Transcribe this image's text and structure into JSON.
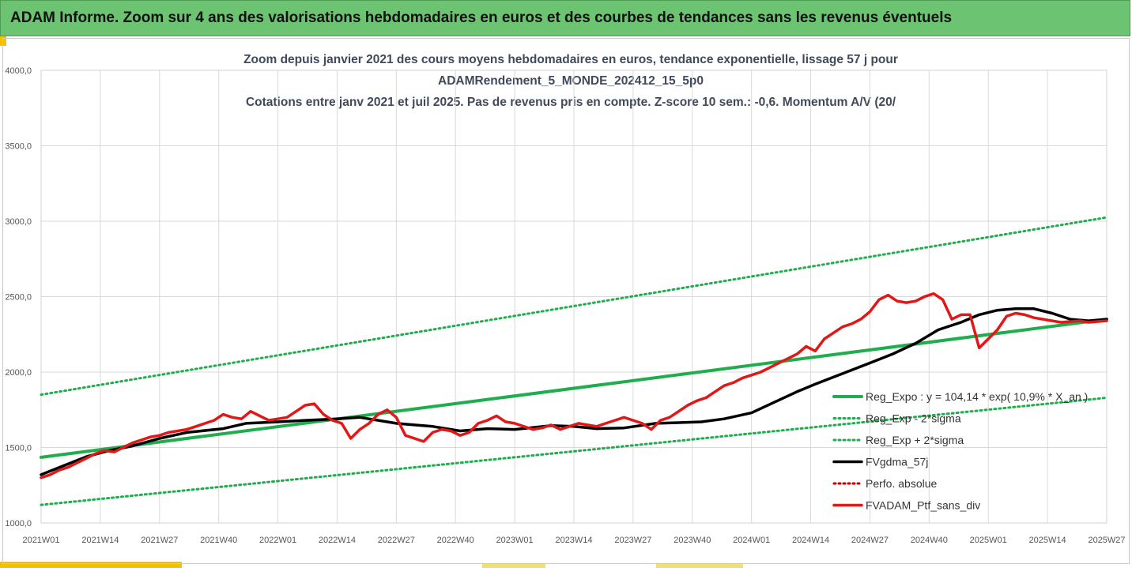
{
  "header": {
    "title": "ADAM Informe. Zoom sur 4 ans des valorisations hebdomadaires en euros et des courbes de tendances sans les revenus éventuels"
  },
  "colors": {
    "header_bg": "#6cc371",
    "reg_expo": "#1fad4e",
    "sigma_bands": "#1fad4e",
    "fvgdma": "#000000",
    "perfo_absolue": "#c00000",
    "fvadam": "#e01818",
    "accent": "#f2c100"
  },
  "chart_data": {
    "type": "line",
    "title_lines": [
      "Zoom depuis janvier 2021 des cours moyens hebdomadaires  en euros, tendance exponentielle, lissage 57 j pour",
      "ADAMRendement_5_MONDE_202412_15_5p0",
      "Cotations entre janv 2021 et juil 2025. Pas de revenus pris en compte. Z-score 10 sem.: -0,6. Momentum A/V (20/"
    ],
    "x_tick_labels": [
      "2021W01",
      "2021W14",
      "2021W27",
      "2021W40",
      "2022W01",
      "2022W14",
      "2022W27",
      "2022W40",
      "2023W01",
      "2023W14",
      "2023W27",
      "2023W40",
      "2024W01",
      "2024W14",
      "2024W27",
      "2024W40",
      "2025W01",
      "2025W14",
      "2025W27"
    ],
    "y_tick_labels": [
      "1000,0",
      "1500,0",
      "2000,0",
      "2500,0",
      "3000,0",
      "3500,0",
      "4000,0"
    ],
    "ylim": [
      1000,
      4000
    ],
    "x_range_weeks": [
      0,
      234
    ],
    "grid": true,
    "legend_position": "bottom-right",
    "series": [
      {
        "name": "Reg_Expo : y = 104,14 * exp( 10,9% *  X_an )",
        "style": "solid",
        "x_weeks": [
          0,
          234
        ],
        "y": [
          1435,
          2350
        ]
      },
      {
        "name": "Reg_Exp - 2*sigma",
        "style": "dotted",
        "x_weeks": [
          0,
          234
        ],
        "y": [
          1120,
          1830
        ]
      },
      {
        "name": "Reg_Exp + 2*sigma",
        "style": "dotted",
        "x_weeks": [
          0,
          234
        ],
        "y": [
          1850,
          3025
        ]
      },
      {
        "name": "FVgdma_57j",
        "style": "solid",
        "x_weeks": [
          0,
          5,
          10,
          15,
          20,
          26,
          32,
          40,
          45,
          52,
          58,
          65,
          70,
          78,
          82,
          86,
          92,
          98,
          104,
          112,
          117,
          122,
          128,
          135,
          140,
          145,
          150,
          156,
          161,
          166,
          170,
          176,
          182,
          187,
          192,
          197,
          202,
          206,
          210,
          214,
          218,
          222,
          226,
          230,
          234
        ],
        "y": [
          1320,
          1380,
          1440,
          1480,
          1510,
          1560,
          1600,
          1625,
          1660,
          1670,
          1680,
          1690,
          1700,
          1660,
          1650,
          1640,
          1610,
          1625,
          1620,
          1645,
          1640,
          1625,
          1630,
          1660,
          1665,
          1670,
          1690,
          1730,
          1800,
          1870,
          1920,
          1990,
          2060,
          2120,
          2190,
          2280,
          2330,
          2380,
          2410,
          2420,
          2420,
          2390,
          2350,
          2340,
          2350
        ]
      },
      {
        "name": "Perfo. absolue",
        "style": "dotted",
        "x_weeks": [],
        "y": []
      },
      {
        "name": "FVADAM_Ptf_sans_div",
        "style": "solid",
        "x_weeks": [
          0,
          2,
          4,
          6,
          8,
          10,
          12,
          14,
          16,
          18,
          20,
          22,
          24,
          26,
          28,
          30,
          32,
          34,
          36,
          38,
          40,
          42,
          44,
          46,
          48,
          50,
          52,
          54,
          56,
          58,
          60,
          62,
          64,
          66,
          68,
          70,
          72,
          74,
          76,
          78,
          80,
          82,
          84,
          86,
          88,
          90,
          92,
          94,
          96,
          98,
          100,
          102,
          104,
          106,
          108,
          110,
          112,
          114,
          116,
          118,
          120,
          122,
          124,
          126,
          128,
          130,
          132,
          134,
          136,
          138,
          140,
          142,
          144,
          146,
          148,
          150,
          152,
          154,
          156,
          158,
          160,
          162,
          164,
          166,
          168,
          170,
          172,
          174,
          176,
          178,
          180,
          182,
          184,
          186,
          188,
          190,
          192,
          194,
          196,
          198,
          200,
          202,
          204,
          206,
          208,
          210,
          212,
          214,
          216,
          218,
          220,
          222,
          224,
          226,
          228,
          230,
          232,
          234
        ],
        "y": [
          1300,
          1320,
          1350,
          1370,
          1400,
          1430,
          1460,
          1480,
          1470,
          1500,
          1530,
          1550,
          1570,
          1580,
          1600,
          1610,
          1620,
          1640,
          1660,
          1680,
          1720,
          1700,
          1690,
          1740,
          1710,
          1680,
          1690,
          1700,
          1740,
          1780,
          1790,
          1720,
          1680,
          1660,
          1560,
          1620,
          1660,
          1720,
          1750,
          1700,
          1580,
          1560,
          1540,
          1600,
          1620,
          1610,
          1580,
          1600,
          1660,
          1680,
          1710,
          1670,
          1660,
          1640,
          1620,
          1630,
          1650,
          1620,
          1640,
          1660,
          1650,
          1640,
          1660,
          1680,
          1700,
          1680,
          1660,
          1620,
          1680,
          1700,
          1740,
          1780,
          1810,
          1830,
          1870,
          1910,
          1930,
          1960,
          1980,
          2000,
          2030,
          2060,
          2090,
          2120,
          2170,
          2140,
          2220,
          2260,
          2300,
          2320,
          2350,
          2400,
          2480,
          2510,
          2470,
          2460,
          2470,
          2500,
          2520,
          2480,
          2350,
          2380,
          2380,
          2160,
          2220,
          2280,
          2370,
          2390,
          2380,
          2360,
          2350,
          2340,
          2330,
          2335,
          2340,
          2330,
          2335,
          2340
        ]
      }
    ]
  }
}
